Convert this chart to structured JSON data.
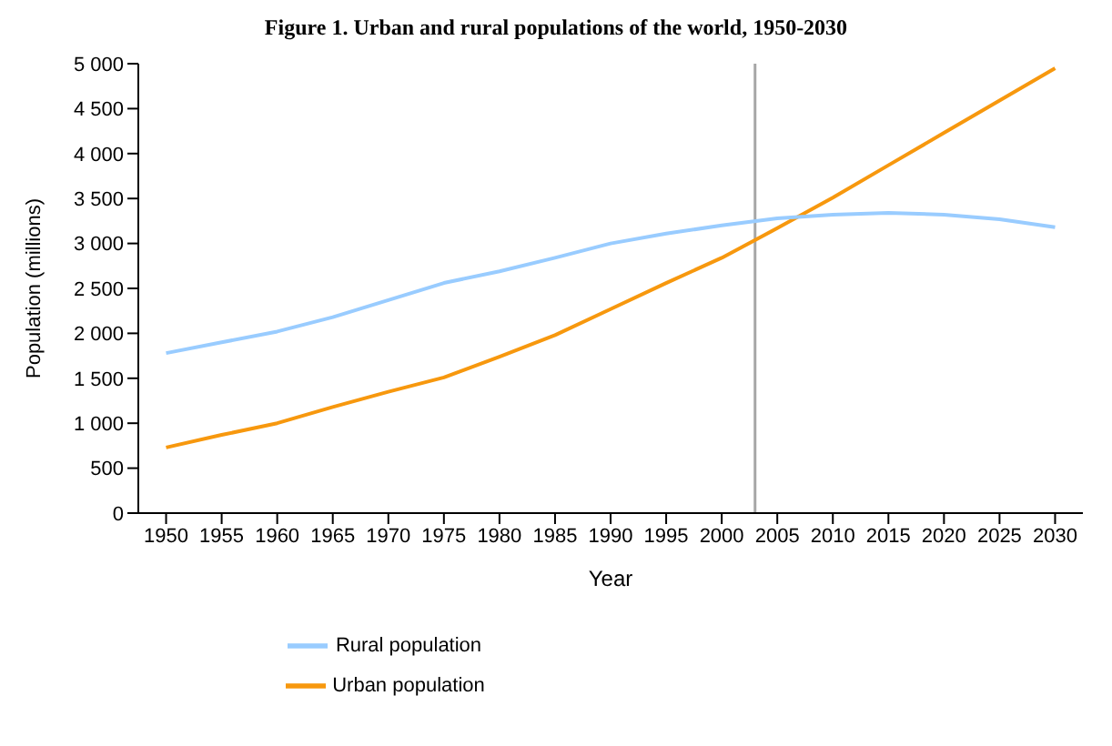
{
  "chart_data": {
    "type": "line",
    "title": "Figure 1. Urban and rural populations of the world, 1950-2030",
    "xlabel": "Year",
    "ylabel": "Population (millions)",
    "x": [
      1950,
      1955,
      1960,
      1965,
      1970,
      1975,
      1980,
      1985,
      1990,
      1995,
      2000,
      2005,
      2010,
      2015,
      2020,
      2025,
      2030
    ],
    "series": [
      {
        "name": "Urban population",
        "color": "#f7980e",
        "values": [
          730,
          870,
          1000,
          1180,
          1350,
          1510,
          1740,
          1980,
          2270,
          2560,
          2840,
          3170,
          3510,
          3870,
          4230,
          4590,
          4950
        ]
      },
      {
        "name": "Rural population",
        "color": "#99ccff",
        "values": [
          1780,
          1900,
          2020,
          2180,
          2370,
          2560,
          2690,
          2840,
          3000,
          3110,
          3200,
          3280,
          3320,
          3340,
          3320,
          3270,
          3180
        ]
      }
    ],
    "xlim": [
      1947.5,
      2032.5
    ],
    "xticks": [
      1950,
      1955,
      1960,
      1965,
      1970,
      1975,
      1980,
      1985,
      1990,
      1995,
      2000,
      2005,
      2010,
      2015,
      2020,
      2025,
      2030
    ],
    "ylim": [
      0,
      5000
    ],
    "yticks": [
      {
        "value": 0,
        "label": "0"
      },
      {
        "value": 500,
        "label": "500"
      },
      {
        "value": 1000,
        "label": "1 000"
      },
      {
        "value": 1500,
        "label": "1 500"
      },
      {
        "value": 2000,
        "label": "2 000"
      },
      {
        "value": 2500,
        "label": "2 500"
      },
      {
        "value": 3000,
        "label": "3 000"
      },
      {
        "value": 3500,
        "label": "3 500"
      },
      {
        "value": 4000,
        "label": "4 000"
      },
      {
        "value": 4500,
        "label": "4 500"
      },
      {
        "value": 5000,
        "label": "5 000"
      }
    ],
    "ref_lines": [
      {
        "axis": "x",
        "value": 2003,
        "color": "#a6a6a6"
      }
    ],
    "grid": false,
    "legend": "bottom",
    "marker": "none",
    "line_style": "solid"
  }
}
